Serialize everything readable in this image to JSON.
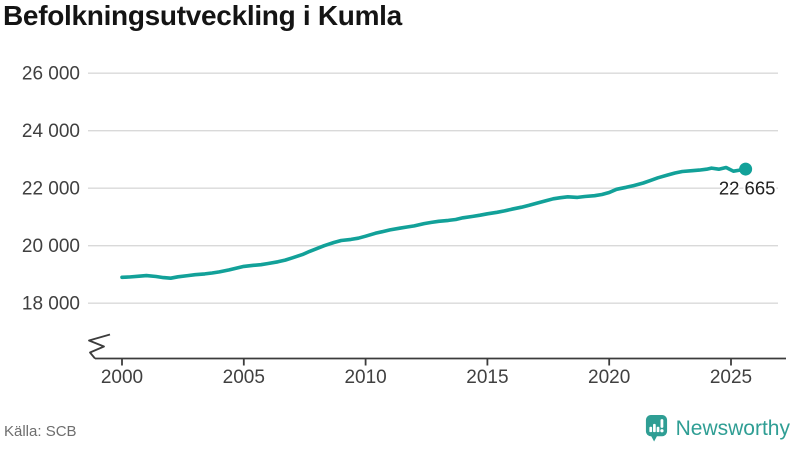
{
  "header": {
    "title": "Befolkningsutveckling i Kumla"
  },
  "footer": {
    "source": "Källa: SCB",
    "brand": "Newsworthy"
  },
  "colors": {
    "line": "#12a199",
    "brand": "#2f9e94",
    "grid": "#d9d9d9",
    "axis": "#3c3c3c",
    "tick_text": "#404040",
    "end_label": "#1f1f1f",
    "title": "#141414",
    "source_text": "#6e6e6e"
  },
  "chart_data": {
    "type": "line",
    "title": "Befolkningsutveckling i Kumla",
    "xlabel": "",
    "ylabel": "",
    "broken_axis": true,
    "grid": "horizontal",
    "legend": "none",
    "x_axis": {
      "ticks": [
        2000,
        2005,
        2010,
        2015,
        2020,
        2025
      ],
      "range": [
        2000,
        2026.9
      ]
    },
    "y_axis": {
      "ticks": [
        {
          "value": 26000,
          "label": "26 000"
        },
        {
          "value": 24000,
          "label": "24 000"
        },
        {
          "value": 22000,
          "label": "22 000"
        },
        {
          "value": 20000,
          "label": "20 000"
        },
        {
          "value": 18000,
          "label": "18 000"
        }
      ],
      "range_drawn": [
        18000,
        26000
      ]
    },
    "series": [
      {
        "color": "#12a199",
        "points": [
          [
            2000.0,
            18900
          ],
          [
            2000.3,
            18910
          ],
          [
            2000.7,
            18940
          ],
          [
            2001.0,
            18960
          ],
          [
            2001.4,
            18930
          ],
          [
            2001.7,
            18890
          ],
          [
            2002.0,
            18870
          ],
          [
            2002.3,
            18920
          ],
          [
            2002.7,
            18960
          ],
          [
            2003.0,
            18990
          ],
          [
            2003.4,
            19020
          ],
          [
            2003.7,
            19050
          ],
          [
            2004.0,
            19090
          ],
          [
            2004.4,
            19160
          ],
          [
            2004.7,
            19220
          ],
          [
            2005.0,
            19280
          ],
          [
            2005.4,
            19320
          ],
          [
            2005.7,
            19340
          ],
          [
            2006.0,
            19380
          ],
          [
            2006.4,
            19440
          ],
          [
            2006.7,
            19500
          ],
          [
            2007.0,
            19580
          ],
          [
            2007.4,
            19690
          ],
          [
            2007.7,
            19800
          ],
          [
            2008.0,
            19900
          ],
          [
            2008.3,
            20000
          ],
          [
            2008.7,
            20110
          ],
          [
            2009.0,
            20180
          ],
          [
            2009.4,
            20220
          ],
          [
            2009.7,
            20260
          ],
          [
            2010.0,
            20330
          ],
          [
            2010.4,
            20430
          ],
          [
            2010.7,
            20490
          ],
          [
            2011.0,
            20550
          ],
          [
            2011.4,
            20610
          ],
          [
            2011.7,
            20650
          ],
          [
            2012.0,
            20690
          ],
          [
            2012.4,
            20770
          ],
          [
            2012.7,
            20810
          ],
          [
            2013.0,
            20850
          ],
          [
            2013.4,
            20880
          ],
          [
            2013.7,
            20910
          ],
          [
            2014.0,
            20970
          ],
          [
            2014.4,
            21020
          ],
          [
            2014.7,
            21060
          ],
          [
            2015.0,
            21110
          ],
          [
            2015.4,
            21160
          ],
          [
            2015.7,
            21210
          ],
          [
            2016.0,
            21270
          ],
          [
            2016.4,
            21340
          ],
          [
            2016.7,
            21400
          ],
          [
            2017.0,
            21470
          ],
          [
            2017.4,
            21560
          ],
          [
            2017.7,
            21630
          ],
          [
            2018.0,
            21670
          ],
          [
            2018.3,
            21700
          ],
          [
            2018.7,
            21680
          ],
          [
            2019.0,
            21710
          ],
          [
            2019.4,
            21740
          ],
          [
            2019.7,
            21780
          ],
          [
            2020.0,
            21850
          ],
          [
            2020.3,
            21960
          ],
          [
            2020.7,
            22030
          ],
          [
            2021.0,
            22090
          ],
          [
            2021.4,
            22180
          ],
          [
            2021.7,
            22270
          ],
          [
            2022.0,
            22360
          ],
          [
            2022.4,
            22460
          ],
          [
            2022.7,
            22530
          ],
          [
            2023.0,
            22580
          ],
          [
            2023.4,
            22610
          ],
          [
            2023.7,
            22630
          ],
          [
            2024.0,
            22660
          ],
          [
            2024.2,
            22700
          ],
          [
            2024.5,
            22660
          ],
          [
            2024.8,
            22720
          ],
          [
            2025.1,
            22590
          ],
          [
            2025.3,
            22620
          ],
          [
            2025.6,
            22665
          ]
        ]
      }
    ],
    "end_point": {
      "x": 2025.6,
      "value": 22665,
      "label": "22 665"
    }
  }
}
